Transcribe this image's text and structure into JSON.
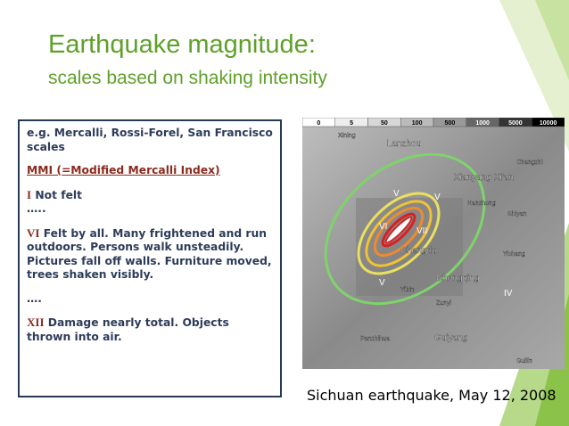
{
  "header": {
    "title": "Earthquake magnitude:",
    "subtitle": "scales based on shaking intensity"
  },
  "box": {
    "examples": "e.g. Mercalli, Rossi-Forel, San Francisco scales",
    "mmi": "MMI (=Modified Mercalli Index)",
    "levels": [
      {
        "roman": "I",
        "text": "Not felt"
      },
      {
        "roman": "VI",
        "text": "Felt by all.  Many frightened and run outdoors.  Persons walk unsteadily. Pictures fall off  walls.  Furniture moved, trees shaken visibly."
      },
      {
        "roman": "XII",
        "text": "Damage nearly total.  Objects thrown into air."
      }
    ],
    "ellipsis": [
      "…..",
      "…."
    ]
  },
  "map": {
    "legend": [
      "0",
      "5",
      "50",
      "100",
      "500",
      "1000",
      "5000",
      "10000"
    ],
    "places": [
      "Xining",
      "Lanzhou",
      "Xianyang",
      "Xi'an",
      "Changzhi",
      "Hanzhong",
      "Shiyan",
      "Yichang",
      "Chengdu",
      "Chongqing",
      "Zunyi",
      "Guiyang",
      "Panzhihua",
      "Yibin",
      "Guilin"
    ],
    "intensities": [
      "V",
      "V",
      "VI",
      "VII",
      "V",
      "IV"
    ]
  },
  "caption": "Sichuan earthquake, May 12, 2008"
}
